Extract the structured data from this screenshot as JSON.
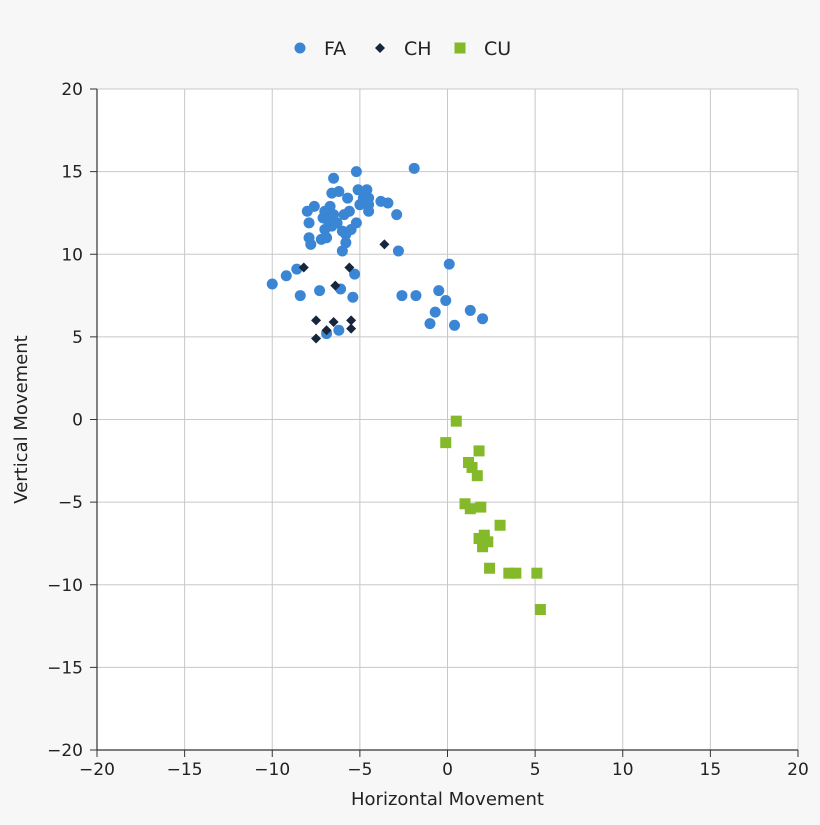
{
  "chart_data": {
    "type": "scatter",
    "xlabel": "Horizontal Movement",
    "ylabel": "Vertical Movement",
    "xlim": [
      -20,
      20
    ],
    "ylim": [
      -20,
      20
    ],
    "xticks": [
      -20,
      -15,
      -10,
      -5,
      0,
      5,
      10,
      15,
      20
    ],
    "yticks": [
      -20,
      -15,
      -10,
      -5,
      0,
      5,
      10,
      15,
      20
    ],
    "grid": true,
    "legend_position": "top-center",
    "series": [
      {
        "name": "FA",
        "marker": "circle",
        "color": "#3a86d4",
        "points": [
          [
            -10,
            8.2
          ],
          [
            -9.2,
            8.7
          ],
          [
            -8.6,
            9.1
          ],
          [
            -8.4,
            7.5
          ],
          [
            -8,
            12.6
          ],
          [
            -7.9,
            11.9
          ],
          [
            -7.9,
            11
          ],
          [
            -7.8,
            10.6
          ],
          [
            -7.6,
            12.9
          ],
          [
            -7.3,
            7.8
          ],
          [
            -7.2,
            10.9
          ],
          [
            -7.1,
            12.2
          ],
          [
            -7,
            11.5
          ],
          [
            -7,
            12.6
          ],
          [
            -6.9,
            11
          ],
          [
            -6.9,
            5.2
          ],
          [
            -6.8,
            12.4
          ],
          [
            -6.8,
            12
          ],
          [
            -6.7,
            12.9
          ],
          [
            -6.6,
            13.7
          ],
          [
            -6.6,
            11.7
          ],
          [
            -6.5,
            14.6
          ],
          [
            -6.5,
            12.4
          ],
          [
            -6.3,
            11.9
          ],
          [
            -6.2,
            13.8
          ],
          [
            -6.2,
            5.4
          ],
          [
            -6.1,
            7.9
          ],
          [
            -6,
            11.4
          ],
          [
            -6,
            10.2
          ],
          [
            -5.9,
            12.4
          ],
          [
            -5.8,
            11.2
          ],
          [
            -5.8,
            10.7
          ],
          [
            -5.7,
            13.4
          ],
          [
            -5.6,
            12.6
          ],
          [
            -5.5,
            11.5
          ],
          [
            -5.4,
            7.4
          ],
          [
            -5.3,
            8.8
          ],
          [
            -5.2,
            15
          ],
          [
            -5.2,
            11.9
          ],
          [
            -5.1,
            13.9
          ],
          [
            -5,
            13
          ],
          [
            -4.8,
            13.4
          ],
          [
            -4.6,
            13.9
          ],
          [
            -4.5,
            13.4
          ],
          [
            -4.5,
            13
          ],
          [
            -4.5,
            12.6
          ],
          [
            -3.8,
            13.2
          ],
          [
            -3.4,
            13.1
          ],
          [
            -2.9,
            12.4
          ],
          [
            -2.8,
            10.2
          ],
          [
            -2.6,
            7.5
          ],
          [
            -1.9,
            15.2
          ],
          [
            -1.8,
            7.5
          ],
          [
            -1,
            5.8
          ],
          [
            -0.7,
            6.5
          ],
          [
            -0.5,
            7.8
          ],
          [
            -0.1,
            7.2
          ],
          [
            0.1,
            9.4
          ],
          [
            0.4,
            5.7
          ],
          [
            1.3,
            6.6
          ],
          [
            2,
            6.1
          ]
        ]
      },
      {
        "name": "CH",
        "marker": "diamond",
        "color": "#17263c",
        "points": [
          [
            -8.2,
            9.2
          ],
          [
            -7.5,
            6
          ],
          [
            -7.5,
            4.9
          ],
          [
            -6.9,
            5.4
          ],
          [
            -6.5,
            5.9
          ],
          [
            -6.4,
            8.1
          ],
          [
            -5.6,
            9.2
          ],
          [
            -5.5,
            6
          ],
          [
            -5.5,
            5.5
          ],
          [
            -3.6,
            10.6
          ]
        ]
      },
      {
        "name": "CU",
        "marker": "square",
        "color": "#84b92a",
        "points": [
          [
            0.5,
            -0.1
          ],
          [
            -0.1,
            -1.4
          ],
          [
            1.8,
            -1.9
          ],
          [
            1.2,
            -2.6
          ],
          [
            1.4,
            -2.9
          ],
          [
            1.7,
            -3.4
          ],
          [
            1,
            -5.1
          ],
          [
            1.3,
            -5.4
          ],
          [
            1.9,
            -5.3
          ],
          [
            3,
            -6.4
          ],
          [
            1.8,
            -7.2
          ],
          [
            2.1,
            -7
          ],
          [
            2.3,
            -7.4
          ],
          [
            2,
            -7.7
          ],
          [
            2.4,
            -9
          ],
          [
            3.5,
            -9.3
          ],
          [
            3.9,
            -9.3
          ],
          [
            5.1,
            -9.3
          ],
          [
            5.3,
            -11.5
          ]
        ]
      }
    ]
  }
}
